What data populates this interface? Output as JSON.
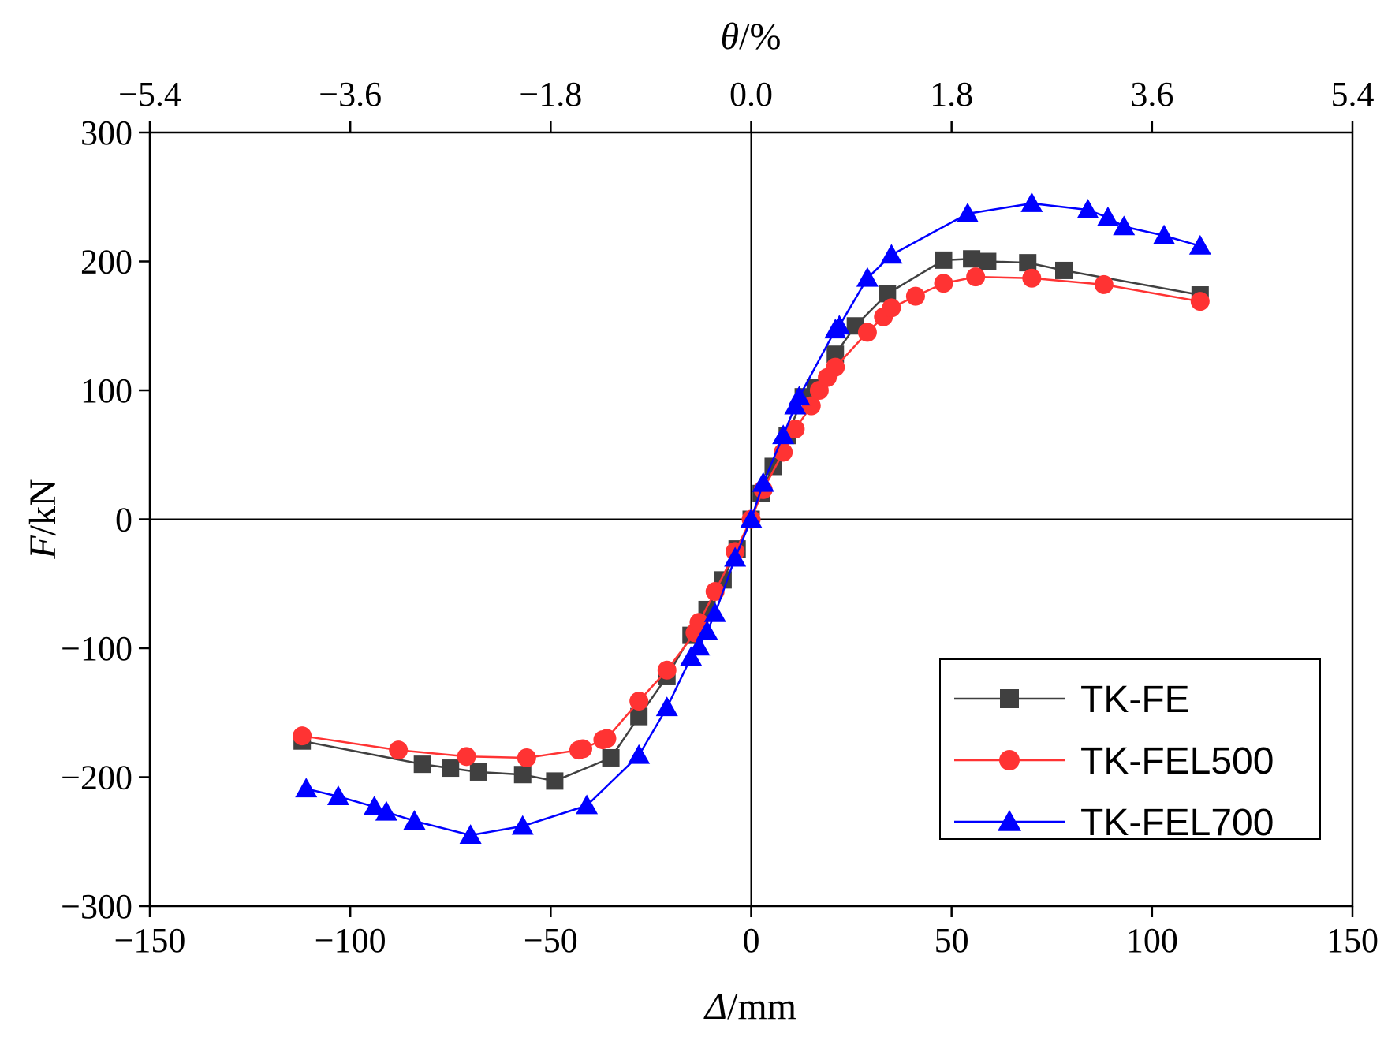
{
  "chart_data": {
    "type": "line",
    "title": "",
    "xlabel": "Δ/mm",
    "xlabel_italic": "Δ",
    "xlabel_rest": "/mm",
    "ylabel": "F/kN",
    "ylabel_italic": "F",
    "ylabel_rest": "/kN",
    "top_xlabel": "θ/%",
    "top_xlabel_italic": "θ",
    "top_xlabel_rest": "/%",
    "xlim": [
      -150,
      150
    ],
    "ylim": [
      -300,
      300
    ],
    "top_xlim": [
      -5.4,
      5.4
    ],
    "x_ticks": [
      -150,
      -100,
      -50,
      0,
      50,
      100,
      150
    ],
    "x_tick_labels": [
      "−150",
      "−100",
      "−50",
      "0",
      "50",
      "100",
      "150"
    ],
    "y_ticks": [
      -300,
      -200,
      -100,
      0,
      100,
      200,
      300
    ],
    "y_tick_labels": [
      "−300",
      "−200",
      "−100",
      "0",
      "100",
      "200",
      "300"
    ],
    "top_ticks": [
      -5.4,
      -3.6,
      -1.8,
      0.0,
      1.8,
      3.6,
      5.4
    ],
    "top_tick_labels": [
      "−5.4",
      "−3.6",
      "−1.8",
      "0.0",
      "1.8",
      "3.6",
      "5.4"
    ],
    "legend_position": "bottom-right",
    "series": [
      {
        "name": "TK-FE",
        "color": "#404040",
        "marker": "square",
        "points": [
          [
            -112,
            -172
          ],
          [
            -82,
            -190
          ],
          [
            -75,
            -193
          ],
          [
            -68,
            -196
          ],
          [
            -57,
            -198
          ],
          [
            -49,
            -203
          ],
          [
            -35,
            -185
          ],
          [
            -28,
            -153
          ],
          [
            -21,
            -122
          ],
          [
            -15,
            -90
          ],
          [
            -11,
            -70
          ],
          [
            -7,
            -47
          ],
          [
            -3.5,
            -23
          ],
          [
            0,
            0
          ],
          [
            2.5,
            20
          ],
          [
            5.5,
            41
          ],
          [
            9,
            65
          ],
          [
            13,
            95
          ],
          [
            16,
            102
          ],
          [
            21,
            128
          ],
          [
            26,
            150
          ],
          [
            34,
            175
          ],
          [
            48,
            201
          ],
          [
            55,
            202
          ],
          [
            59,
            200
          ],
          [
            69,
            199
          ],
          [
            78,
            193
          ],
          [
            112,
            174
          ]
        ]
      },
      {
        "name": "TK-FEL500",
        "color": "#ff3333",
        "marker": "circle",
        "points": [
          [
            -112,
            -168
          ],
          [
            -88,
            -179
          ],
          [
            -71,
            -184
          ],
          [
            -56,
            -185
          ],
          [
            -43,
            -179
          ],
          [
            -42,
            -178
          ],
          [
            -37,
            -171
          ],
          [
            -36,
            -170
          ],
          [
            -28,
            -141
          ],
          [
            -21,
            -117
          ],
          [
            -14,
            -88
          ],
          [
            -13,
            -80
          ],
          [
            -9,
            -56
          ],
          [
            -4,
            -25
          ],
          [
            0,
            0
          ],
          [
            3,
            23
          ],
          [
            8,
            52
          ],
          [
            11,
            70
          ],
          [
            15,
            88
          ],
          [
            17,
            100
          ],
          [
            19,
            110
          ],
          [
            21,
            118
          ],
          [
            29,
            145
          ],
          [
            33,
            157
          ],
          [
            35,
            164
          ],
          [
            41,
            173
          ],
          [
            48,
            183
          ],
          [
            56,
            188
          ],
          [
            70,
            187
          ],
          [
            88,
            182
          ],
          [
            112,
            169
          ]
        ]
      },
      {
        "name": "TK-FEL700",
        "color": "#0000ff",
        "marker": "triangle",
        "points": [
          [
            -111,
            -209
          ],
          [
            -103,
            -215
          ],
          [
            -94,
            -223
          ],
          [
            -91,
            -227
          ],
          [
            -84,
            -234
          ],
          [
            -70,
            -245
          ],
          [
            -57,
            -238
          ],
          [
            -41,
            -222
          ],
          [
            -28,
            -183
          ],
          [
            -21,
            -146
          ],
          [
            -15,
            -107
          ],
          [
            -13,
            -99
          ],
          [
            -11,
            -87
          ],
          [
            -9,
            -73
          ],
          [
            -4,
            -30
          ],
          [
            0,
            0
          ],
          [
            3,
            28
          ],
          [
            8,
            65
          ],
          [
            11,
            88
          ],
          [
            12,
            95
          ],
          [
            21,
            147
          ],
          [
            22,
            150
          ],
          [
            29,
            187
          ],
          [
            35,
            205
          ],
          [
            54,
            237
          ],
          [
            70,
            245
          ],
          [
            84,
            240
          ],
          [
            89,
            234
          ],
          [
            93,
            227
          ],
          [
            103,
            220
          ],
          [
            112,
            212
          ]
        ]
      }
    ]
  }
}
